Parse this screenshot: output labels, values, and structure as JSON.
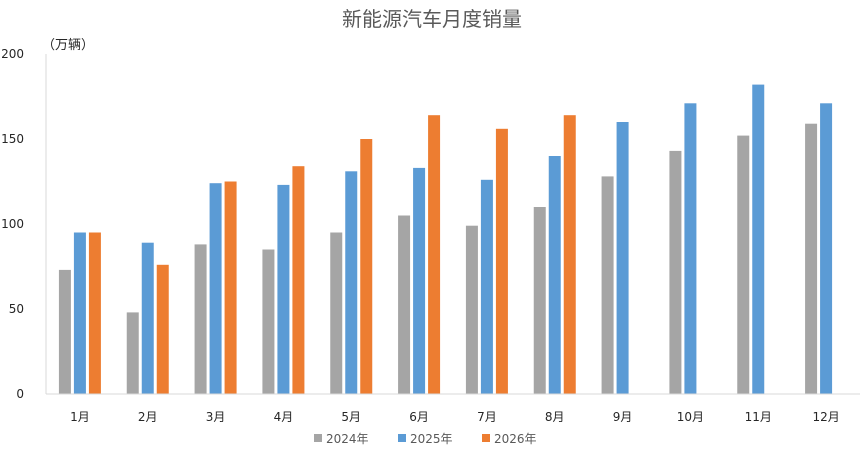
{
  "chart_data": {
    "type": "bar",
    "title": "新能源汽车月度销量",
    "unit_label": "（万辆）",
    "xlabel": "",
    "ylabel": "",
    "ylim": [
      0,
      200
    ],
    "yticks": [
      0,
      50,
      100,
      150,
      200
    ],
    "grid": false,
    "legend_position": "bottom",
    "categories": [
      "1月",
      "2月",
      "3月",
      "4月",
      "5月",
      "6月",
      "7月",
      "8月",
      "9月",
      "10月",
      "11月",
      "12月"
    ],
    "series": [
      {
        "name": "2024年",
        "color": "#a5a5a5",
        "values": [
          73,
          48,
          88,
          85,
          95,
          105,
          99,
          110,
          128,
          143,
          152,
          159
        ]
      },
      {
        "name": "2025年",
        "color": "#5b9bd5",
        "values": [
          95,
          89,
          124,
          123,
          131,
          133,
          126,
          140,
          160,
          171,
          182,
          171
        ]
      },
      {
        "name": "2026年",
        "color": "#ed7d31",
        "values": [
          95,
          76,
          125,
          134,
          150,
          164,
          156,
          164,
          null,
          null,
          null,
          null
        ]
      }
    ]
  }
}
